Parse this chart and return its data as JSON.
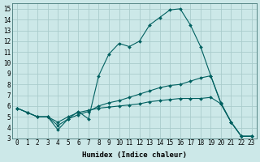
{
  "xlabel": "Humidex (Indice chaleur)",
  "bg_color": "#cce8e8",
  "grid_color": "#aacccc",
  "line_color": "#006060",
  "xlim": [
    -0.5,
    23.5
  ],
  "ylim": [
    3,
    15.5
  ],
  "xticks": [
    0,
    1,
    2,
    3,
    4,
    5,
    6,
    7,
    8,
    9,
    10,
    11,
    12,
    13,
    14,
    15,
    16,
    17,
    18,
    19,
    20,
    21,
    22,
    23
  ],
  "yticks": [
    3,
    4,
    5,
    6,
    7,
    8,
    9,
    10,
    11,
    12,
    13,
    14,
    15
  ],
  "line1_x": [
    0,
    1,
    2,
    3,
    4,
    5,
    6,
    7,
    8,
    9,
    10,
    11,
    12,
    13,
    14,
    15,
    16,
    17,
    18,
    19,
    20,
    21,
    22,
    23
  ],
  "line1_y": [
    5.8,
    5.4,
    5.0,
    5.0,
    3.8,
    4.8,
    5.5,
    4.8,
    8.8,
    10.8,
    11.8,
    11.5,
    12.0,
    13.5,
    14.2,
    14.9,
    15.0,
    13.5,
    11.5,
    8.8,
    6.3,
    4.5,
    3.2,
    3.2
  ],
  "line2_x": [
    0,
    1,
    2,
    3,
    4,
    5,
    6,
    7,
    8,
    9,
    10,
    11,
    12,
    13,
    14,
    15,
    16,
    17,
    18,
    19,
    20,
    21,
    22,
    23
  ],
  "line2_y": [
    5.8,
    5.4,
    5.0,
    5.0,
    4.2,
    4.8,
    5.2,
    5.5,
    6.0,
    6.3,
    6.5,
    6.8,
    7.1,
    7.4,
    7.7,
    7.9,
    8.0,
    8.3,
    8.6,
    8.8,
    6.2,
    4.5,
    3.2,
    3.2
  ],
  "line3_x": [
    0,
    1,
    2,
    3,
    4,
    5,
    6,
    7,
    8,
    9,
    10,
    11,
    12,
    13,
    14,
    15,
    16,
    17,
    18,
    19,
    20,
    21,
    22,
    23
  ],
  "line3_y": [
    5.8,
    5.4,
    5.0,
    5.0,
    4.5,
    5.0,
    5.4,
    5.6,
    5.8,
    5.9,
    6.0,
    6.1,
    6.2,
    6.4,
    6.5,
    6.6,
    6.7,
    6.7,
    6.7,
    6.8,
    6.2,
    4.5,
    3.2,
    3.2
  ],
  "marker": "D",
  "markersize": 2,
  "linewidth": 0.8,
  "xlabel_fontsize": 6.5,
  "tick_fontsize": 5.5
}
